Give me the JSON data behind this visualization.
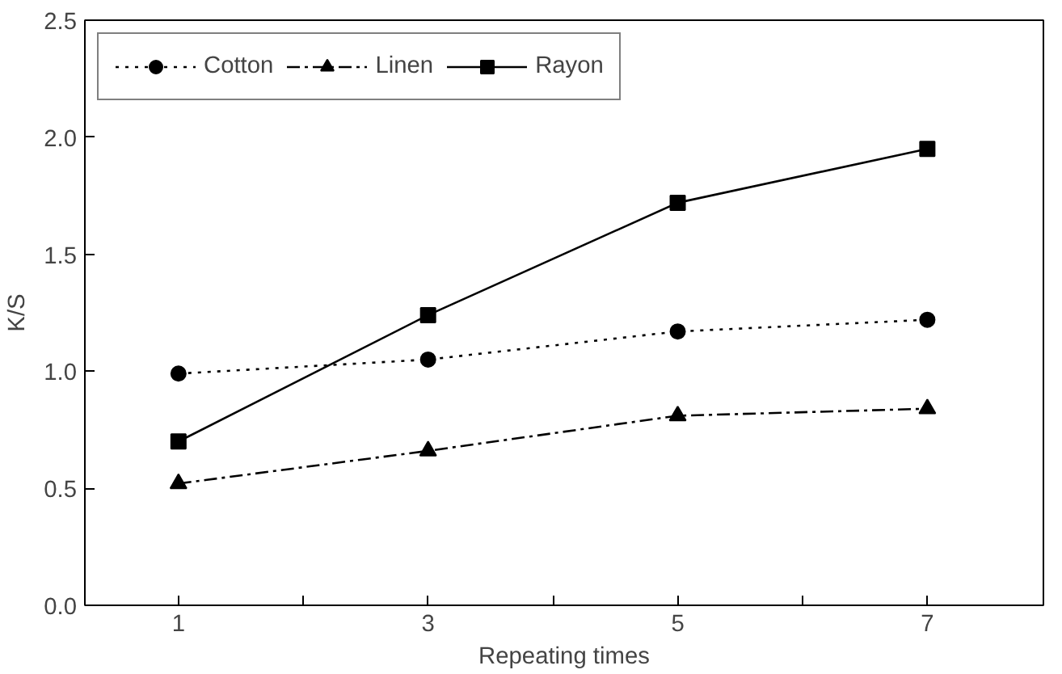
{
  "chart_data": {
    "type": "line",
    "xlabel": "Repeating times",
    "ylabel": "K/S",
    "x": [
      1,
      3,
      5,
      7
    ],
    "xlim": [
      0.25,
      7.93
    ],
    "xticks": [
      {
        "value": 1,
        "label": "1"
      },
      {
        "value": 2,
        "label": null
      },
      {
        "value": 3,
        "label": "3"
      },
      {
        "value": 4,
        "label": null
      },
      {
        "value": 5,
        "label": "5"
      },
      {
        "value": 6,
        "label": null
      },
      {
        "value": 7,
        "label": "7"
      }
    ],
    "ylim": [
      0,
      2.5
    ],
    "yticks": [
      {
        "value": 0,
        "label": "0.0"
      },
      {
        "value": 0.5,
        "label": "0.5"
      },
      {
        "value": 1,
        "label": "1.0"
      },
      {
        "value": 1.5,
        "label": "1.5"
      },
      {
        "value": 2,
        "label": "2.0"
      },
      {
        "value": 2.5,
        "label": "2.5"
      }
    ],
    "grid": false,
    "legend": "top left",
    "series": [
      {
        "name": "Cotton",
        "color": "#000000",
        "marker": "circle",
        "line_style": "dotted",
        "values": [
          0.99,
          1.05,
          1.17,
          1.22
        ]
      },
      {
        "name": "Linen",
        "color": "#000000",
        "marker": "triangle",
        "line_style": "dashdot",
        "values": [
          0.52,
          0.66,
          0.81,
          0.84
        ]
      },
      {
        "name": "Rayon",
        "color": "#000000",
        "marker": "square",
        "line_style": "solid",
        "values": [
          0.7,
          1.24,
          1.72,
          1.95
        ]
      }
    ]
  }
}
